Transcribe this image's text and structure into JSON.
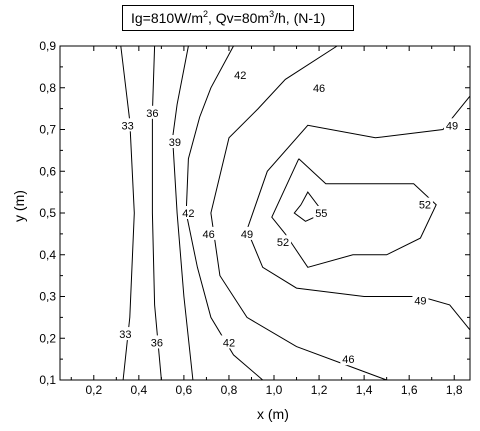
{
  "chart_data": {
    "type": "contour",
    "title": {
      "parts": [
        {
          "text": "Ig=810W/m"
        },
        {
          "sup": "2"
        },
        {
          "text": ",   Qv=80m"
        },
        {
          "sup": "3"
        },
        {
          "text": "/h, (N-1)"
        }
      ]
    },
    "xlabel": "x (m)",
    "ylabel": "y (m)",
    "xlim": [
      0.05,
      1.87
    ],
    "ylim": [
      0.1,
      0.9
    ],
    "x_ticks": [
      "0,2",
      "0,4",
      "0,6",
      "0,8",
      "1,0",
      "1,2",
      "1,4",
      "1,6",
      "1,8"
    ],
    "x_tick_values": [
      0.2,
      0.4,
      0.6,
      0.8,
      1.0,
      1.2,
      1.4,
      1.6,
      1.8
    ],
    "y_ticks": [
      "0,1",
      "0,2",
      "0,3",
      "0,4",
      "0,5",
      "0,6",
      "0,7",
      "0,8",
      "0,9"
    ],
    "y_tick_values": [
      0.1,
      0.2,
      0.3,
      0.4,
      0.5,
      0.6,
      0.7,
      0.8,
      0.9
    ],
    "levels": [
      {
        "value": 33,
        "label": "33",
        "lines": [
          [
            [
              0.32,
              0.9
            ],
            [
              0.36,
              0.72
            ],
            [
              0.38,
              0.5
            ],
            [
              0.36,
              0.25
            ],
            [
              0.33,
              0.1
            ]
          ]
        ],
        "labels": [
          [
            0.35,
            0.71
          ],
          [
            0.34,
            0.21
          ]
        ]
      },
      {
        "value": 36,
        "label": "36",
        "lines": [
          [
            [
              0.47,
              0.9
            ],
            [
              0.46,
              0.74
            ],
            [
              0.46,
              0.5
            ],
            [
              0.47,
              0.28
            ],
            [
              0.5,
              0.1
            ]
          ]
        ],
        "labels": [
          [
            0.46,
            0.74
          ],
          [
            0.48,
            0.19
          ]
        ]
      },
      {
        "value": 39,
        "label": "39",
        "lines": [
          [
            [
              0.62,
              0.9
            ],
            [
              0.57,
              0.76
            ],
            [
              0.55,
              0.68
            ],
            [
              0.57,
              0.5
            ],
            [
              0.6,
              0.3
            ],
            [
              0.64,
              0.1
            ]
          ]
        ],
        "labels": [
          [
            0.56,
            0.67
          ]
        ]
      },
      {
        "value": 42,
        "label": "42",
        "lines": [
          [
            [
              0.82,
              0.9
            ],
            [
              0.72,
              0.8
            ],
            [
              0.67,
              0.73
            ],
            [
              0.62,
              0.63
            ],
            [
              0.61,
              0.5
            ],
            [
              0.66,
              0.37
            ],
            [
              0.72,
              0.25
            ],
            [
              0.82,
              0.16
            ],
            [
              0.95,
              0.1
            ]
          ]
        ],
        "labels": [
          [
            0.85,
            0.83
          ],
          [
            0.62,
            0.5
          ],
          [
            0.8,
            0.19
          ]
        ]
      },
      {
        "value": 46,
        "label": "46",
        "lines": [
          [
            [
              1.28,
              0.9
            ],
            [
              1.05,
              0.82
            ],
            [
              0.93,
              0.75
            ],
            [
              0.8,
              0.68
            ],
            [
              0.72,
              0.5
            ],
            [
              0.76,
              0.35
            ],
            [
              0.88,
              0.25
            ],
            [
              1.1,
              0.18
            ],
            [
              1.35,
              0.13
            ],
            [
              1.5,
              0.1
            ]
          ]
        ],
        "labels": [
          [
            1.2,
            0.8
          ],
          [
            0.71,
            0.45
          ],
          [
            1.33,
            0.15
          ]
        ]
      },
      {
        "value": 49,
        "label": "49",
        "lines": [
          [
            [
              1.87,
              0.78
            ],
            [
              1.75,
              0.7
            ],
            [
              1.45,
              0.68
            ],
            [
              1.15,
              0.71
            ],
            [
              0.97,
              0.6
            ],
            [
              0.88,
              0.46
            ],
            [
              0.95,
              0.37
            ],
            [
              1.1,
              0.32
            ],
            [
              1.4,
              0.3
            ],
            [
              1.65,
              0.3
            ],
            [
              1.78,
              0.28
            ],
            [
              1.87,
              0.22
            ]
          ]
        ],
        "labels": [
          [
            1.79,
            0.71
          ],
          [
            0.88,
            0.45
          ],
          [
            1.65,
            0.29
          ]
        ]
      },
      {
        "value": 52,
        "label": "52",
        "lines": [
          [
            [
              1.11,
              0.63
            ],
            [
              1.23,
              0.57
            ],
            [
              1.45,
              0.57
            ],
            [
              1.62,
              0.57
            ],
            [
              1.72,
              0.52
            ],
            [
              1.65,
              0.44
            ],
            [
              1.5,
              0.4
            ],
            [
              1.35,
              0.4
            ],
            [
              1.15,
              0.37
            ],
            [
              1.05,
              0.45
            ],
            [
              0.99,
              0.49
            ],
            [
              1.11,
              0.63
            ]
          ]
        ],
        "labels": [
          [
            1.67,
            0.52
          ],
          [
            1.04,
            0.43
          ]
        ]
      },
      {
        "value": 55,
        "label": "55",
        "lines": [
          [
            [
              1.12,
              0.52
            ],
            [
              1.15,
              0.55
            ],
            [
              1.22,
              0.5
            ],
            [
              1.14,
              0.48
            ],
            [
              1.09,
              0.5
            ],
            [
              1.12,
              0.52
            ]
          ]
        ],
        "labels": [
          [
            1.21,
            0.5
          ]
        ]
      }
    ]
  }
}
